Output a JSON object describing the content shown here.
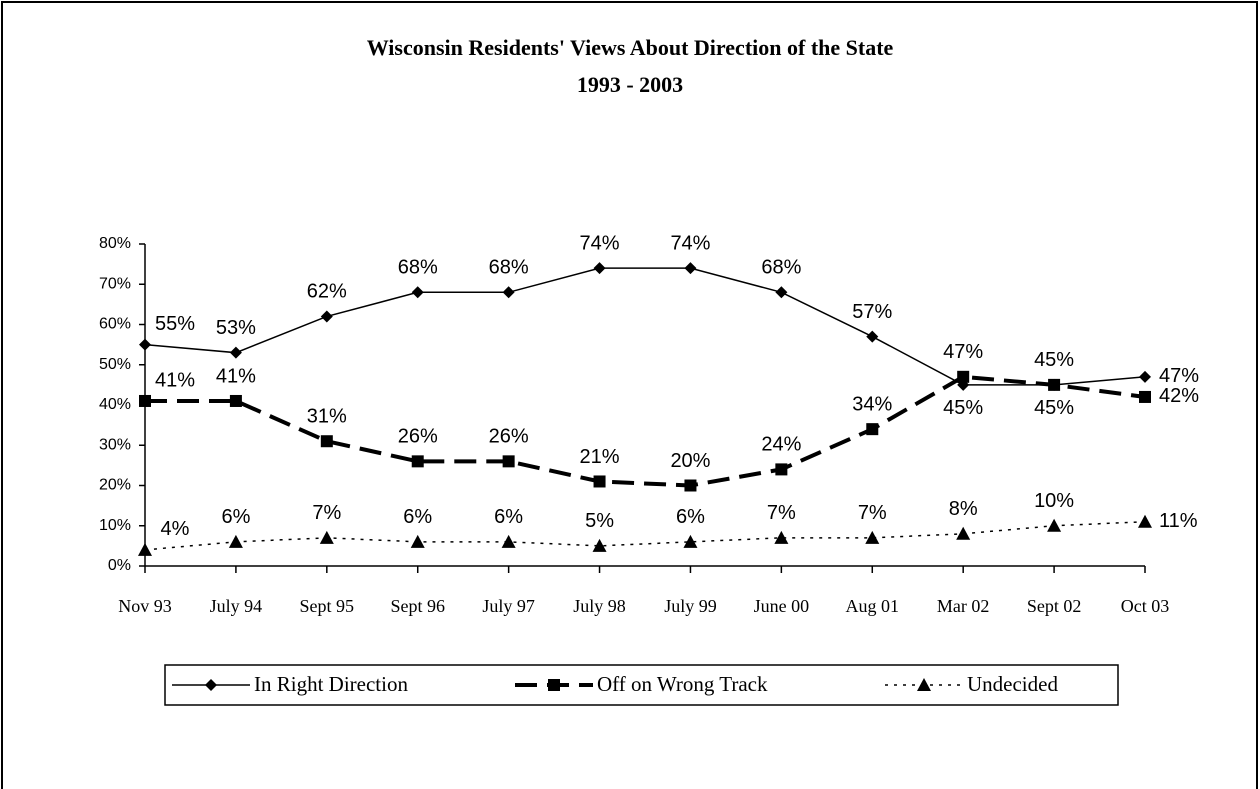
{
  "chart_data": {
    "type": "line",
    "title": "Wisconsin Residents' Views About Direction of the State",
    "subtitle": "1993 - 2003",
    "categories": [
      "Nov 93",
      "July 94",
      "Sept 95",
      "Sept 96",
      "July 97",
      "July 98",
      "July 99",
      "June 00",
      "Aug 01",
      "Mar 02",
      "Sept 02",
      "Oct 03"
    ],
    "ylim": [
      0,
      80
    ],
    "yticks": [
      {
        "value": 0,
        "label": "0%"
      },
      {
        "value": 10,
        "label": "10%"
      },
      {
        "value": 20,
        "label": "20%"
      },
      {
        "value": 30,
        "label": "30%"
      },
      {
        "value": 40,
        "label": "40%"
      },
      {
        "value": 50,
        "label": "50%"
      },
      {
        "value": 60,
        "label": "60%"
      },
      {
        "value": 70,
        "label": "70%"
      },
      {
        "value": 80,
        "label": "80%"
      }
    ],
    "legend": "bottom",
    "series": [
      {
        "name": "In Right Direction",
        "color": "#000000",
        "line": "solid",
        "marker": "diamond",
        "values": [
          55,
          53,
          62,
          68,
          68,
          74,
          74,
          68,
          57,
          45,
          45,
          47
        ],
        "value_labels": [
          "55%",
          "53%",
          "62%",
          "68%",
          "68%",
          "74%",
          "74%",
          "68%",
          "57%",
          "45%",
          "45%",
          "47%"
        ]
      },
      {
        "name": "Off on Wrong Track",
        "color": "#000000",
        "line": "dashed",
        "marker": "square",
        "values": [
          41,
          41,
          31,
          26,
          26,
          21,
          20,
          24,
          34,
          47,
          45,
          42
        ],
        "value_labels": [
          "41%",
          "41%",
          "31%",
          "26%",
          "26%",
          "21%",
          "20%",
          "24%",
          "34%",
          "47%",
          "45%",
          "42%"
        ]
      },
      {
        "name": "Undecided",
        "color": "#000000",
        "line": "dotted",
        "marker": "triangle",
        "values": [
          4,
          6,
          7,
          6,
          6,
          5,
          6,
          7,
          7,
          8,
          10,
          11
        ],
        "value_labels": [
          "4%",
          "6%",
          "7%",
          "6%",
          "6%",
          "5%",
          "6%",
          "7%",
          "7%",
          "8%",
          "10%",
          "11%"
        ]
      }
    ]
  }
}
